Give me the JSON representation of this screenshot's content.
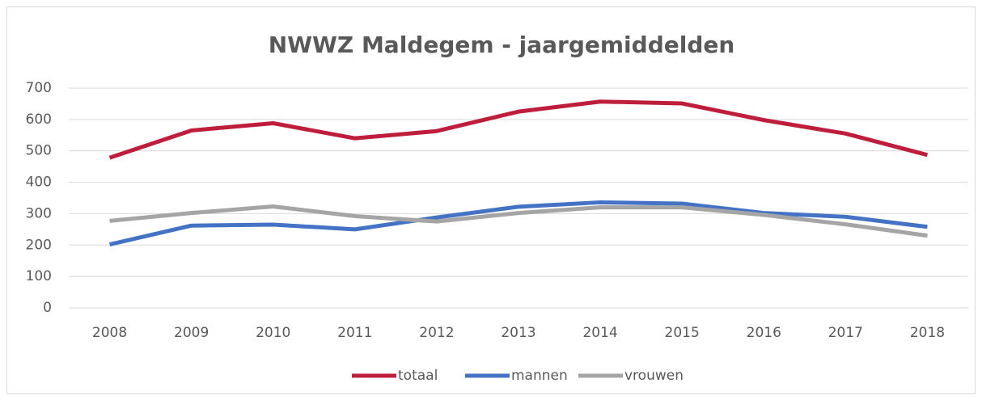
{
  "chart_data": {
    "type": "line",
    "title": "NWWZ Maldegem - jaargemiddelden",
    "categories": [
      "2008",
      "2009",
      "2010",
      "2011",
      "2012",
      "2013",
      "2014",
      "2015",
      "2016",
      "2017",
      "2018"
    ],
    "series": [
      {
        "name": "totaal",
        "color": "#be1e3c",
        "values": [
          478,
          565,
          588,
          540,
          563,
          625,
          657,
          651,
          598,
          555,
          487
        ]
      },
      {
        "name": "mannen",
        "color": "#4472c4",
        "values": [
          202,
          262,
          265,
          250,
          288,
          322,
          336,
          332,
          302,
          290,
          258
        ]
      },
      {
        "name": "vrouwen",
        "color": "#a5a5a5",
        "values": [
          277,
          302,
          323,
          292,
          275,
          302,
          320,
          320,
          296,
          266,
          230
        ]
      }
    ],
    "ylim": [
      0,
      700
    ],
    "yticks": [
      0,
      100,
      200,
      300,
      400,
      500,
      600,
      700
    ],
    "grid": true,
    "legend": "bottom"
  }
}
